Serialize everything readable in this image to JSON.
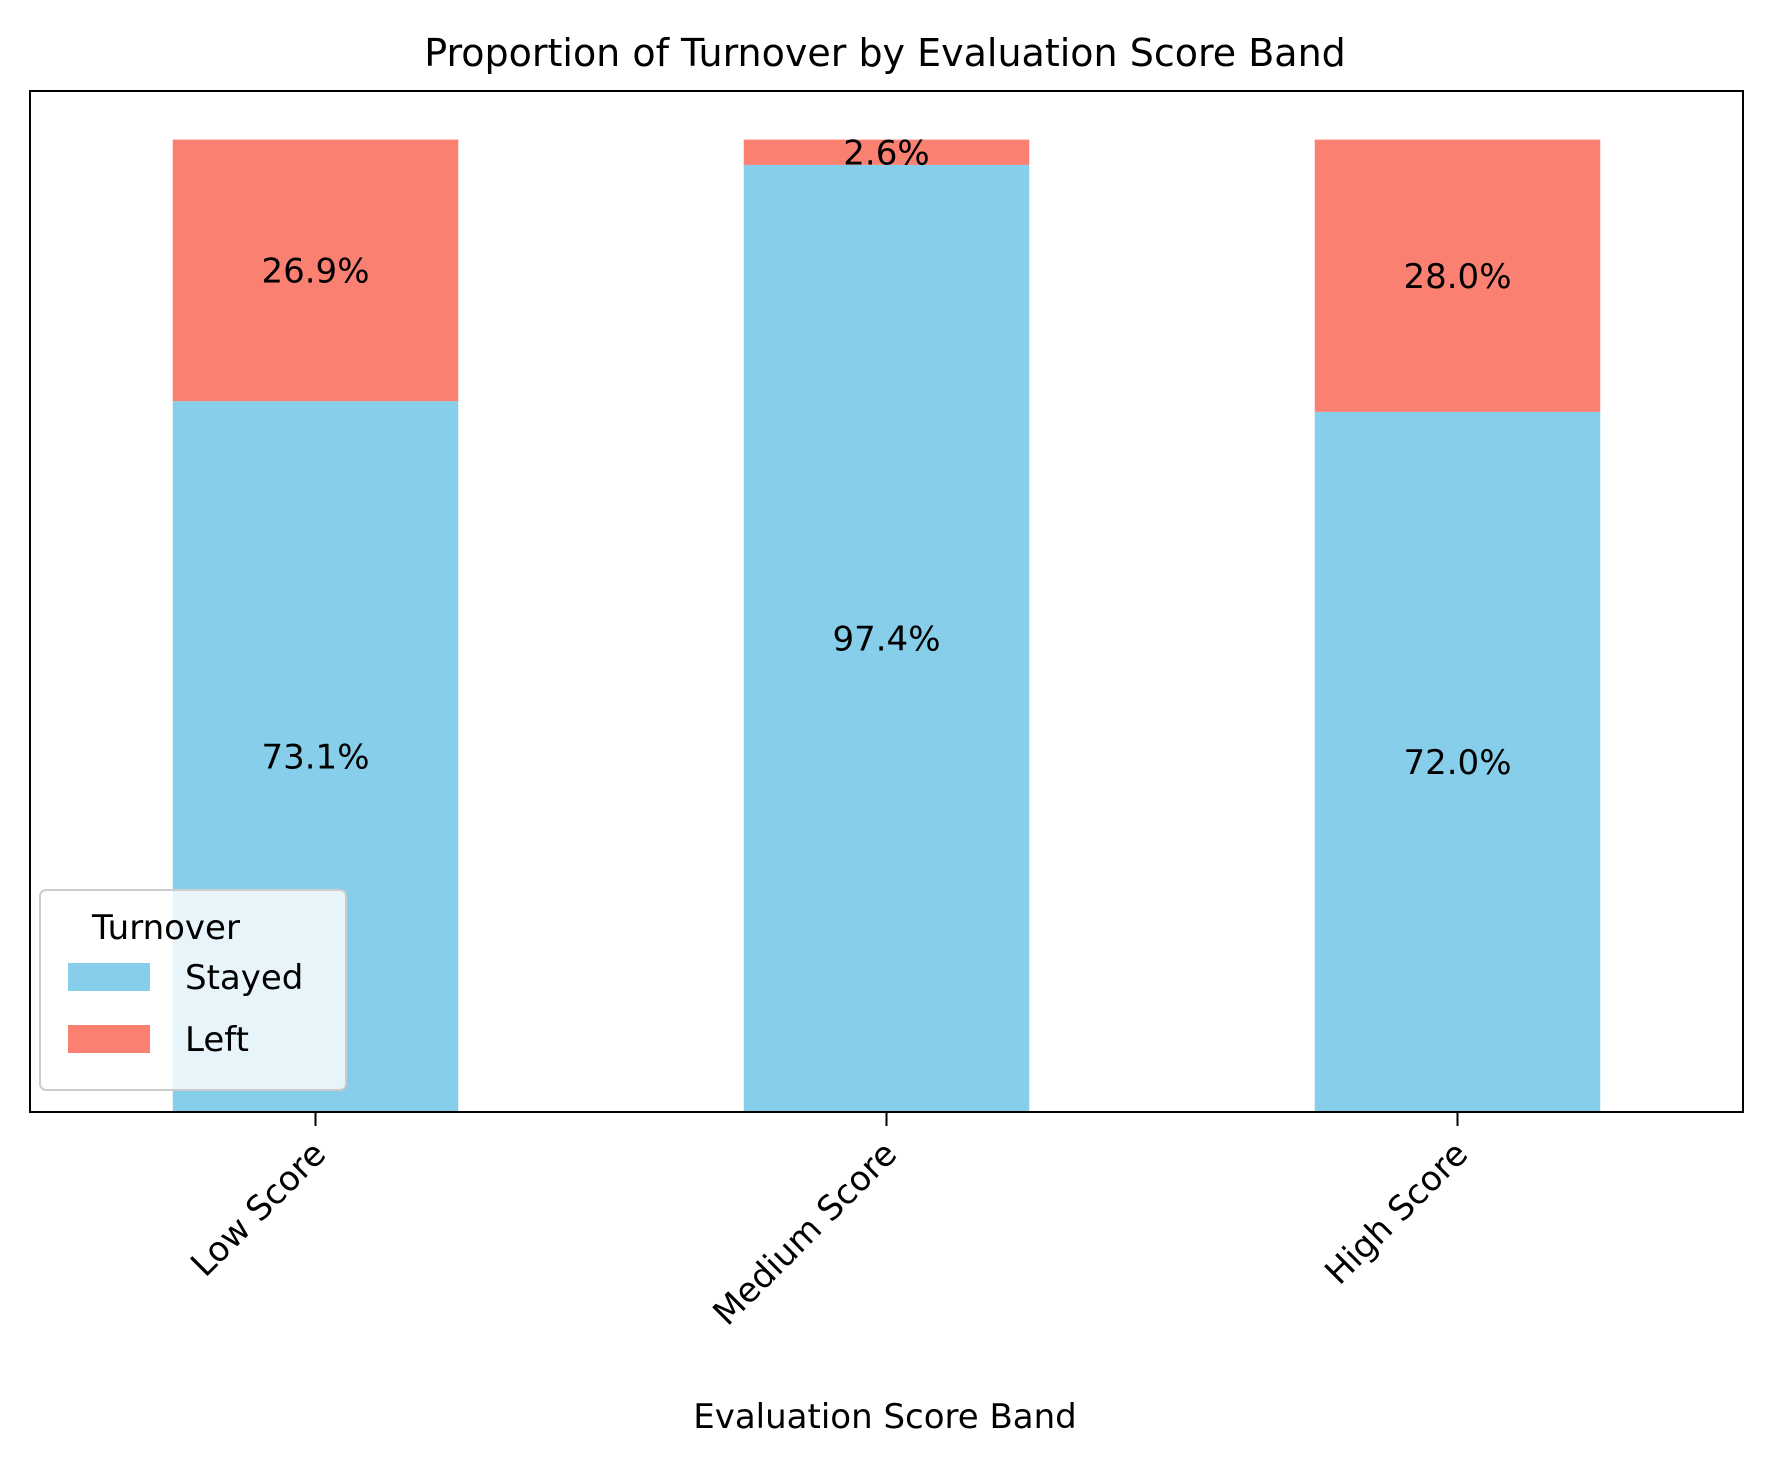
{
  "chart_data": {
    "type": "bar",
    "stacked": true,
    "title": "Proportion of Turnover by Evaluation Score Band",
    "xlabel": "Evaluation Score Band",
    "ylabel": "",
    "ylim": [
      0,
      105
    ],
    "categories": [
      "Low Score",
      "Medium Score",
      "High Score"
    ],
    "series": [
      {
        "name": "Stayed",
        "color": "#87CEEB",
        "values": [
          73.1,
          97.4,
          72.0
        ],
        "labels": [
          "73.1%",
          "97.4%",
          "72.0%"
        ]
      },
      {
        "name": "Left",
        "color": "#FA8072",
        "values": [
          26.9,
          2.6,
          28.0
        ],
        "labels": [
          "26.9%",
          "2.6%",
          "28.0%"
        ]
      }
    ],
    "legend": {
      "title": "Turnover",
      "placement": "lower-left"
    },
    "grid": false
  }
}
